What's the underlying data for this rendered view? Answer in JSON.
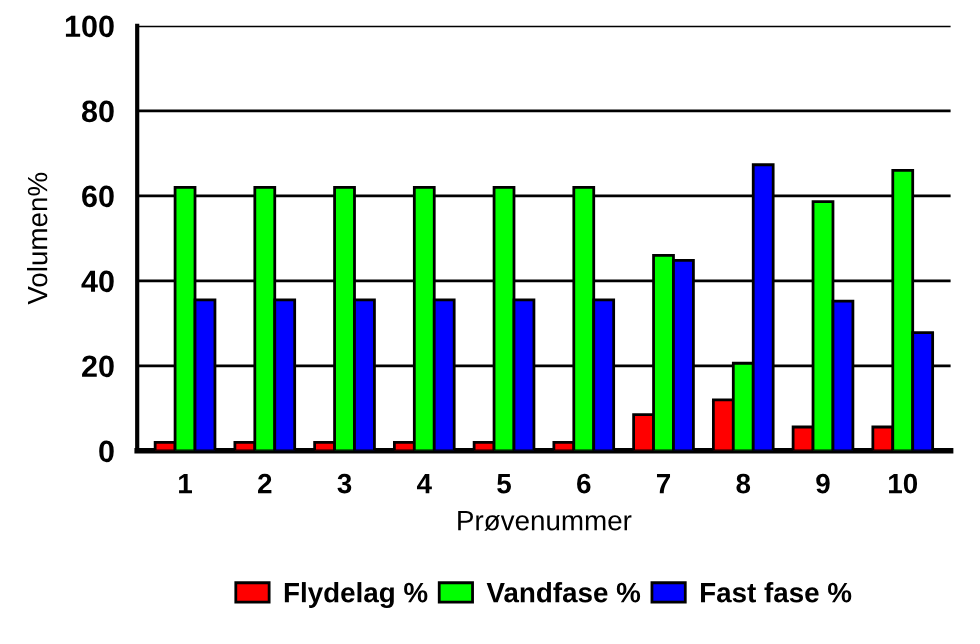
{
  "chart_data": {
    "type": "bar",
    "xlabel": "Prøvenummer",
    "ylabel": "Volumen%",
    "categories": [
      "1",
      "2",
      "3",
      "4",
      "5",
      "6",
      "7",
      "8",
      "9",
      "10"
    ],
    "series": [
      {
        "name": "Flydelag %",
        "color": "#ff0000",
        "values": [
          2,
          2,
          2,
          2,
          2,
          2,
          8.5,
          12,
          5.6,
          5.6
        ]
      },
      {
        "name": "Vandfase %",
        "color": "#00ff00",
        "values": [
          62,
          62,
          62,
          62,
          62,
          62,
          46,
          20.6,
          58.6,
          66
        ]
      },
      {
        "name": "Fast fase %",
        "color": "#0000ff",
        "values": [
          35.5,
          35.5,
          35.5,
          35.5,
          35.5,
          35.5,
          44.8,
          67.3,
          35.2,
          27.8
        ]
      }
    ],
    "ylim": [
      0,
      100
    ],
    "yticks": [
      0,
      20,
      40,
      60,
      80,
      100
    ],
    "grid": "y",
    "legend": "bottom"
  }
}
